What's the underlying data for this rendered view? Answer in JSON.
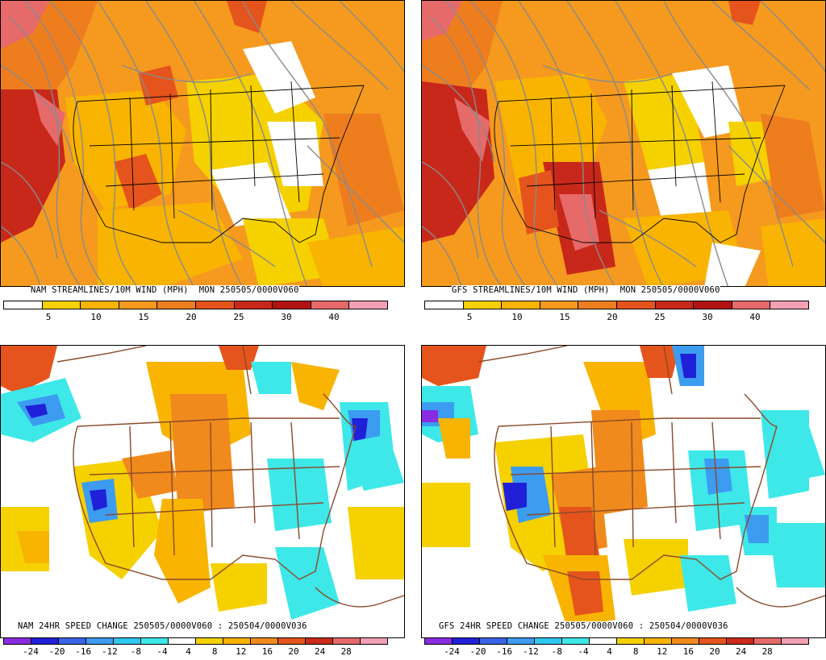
{
  "panels": [
    {
      "id": "nam-wind",
      "title": "NAM STREAMLINES/10M WIND (MPH)  MON 250505/0000V060",
      "kind": "wind",
      "ticks": [
        "5",
        "10",
        "15",
        "20",
        "25",
        "30",
        "40"
      ]
    },
    {
      "id": "gfs-wind",
      "title": "GFS STREAMLINES/10M WIND (MPH)  MON 250505/0000V060",
      "kind": "wind",
      "ticks": [
        "5",
        "10",
        "15",
        "20",
        "25",
        "30",
        "40"
      ]
    },
    {
      "id": "nam-change",
      "title": "NAM 24HR SPEED CHANGE 250505/0000V060 : 250504/0000V036",
      "kind": "change",
      "ticks": [
        "-24",
        "-20",
        "-16",
        "-12",
        "-8",
        "-4",
        "4",
        "8",
        "12",
        "16",
        "20",
        "24",
        "28"
      ]
    },
    {
      "id": "gfs-change",
      "title": "GFS 24HR SPEED CHANGE 250505/0000V060 : 250504/0000V036",
      "kind": "change",
      "ticks": [
        "-24",
        "-20",
        "-16",
        "-12",
        "-8",
        "-4",
        "4",
        "8",
        "12",
        "16",
        "20",
        "24",
        "28"
      ]
    }
  ],
  "scales": {
    "wind_colors": [
      "#ffffff",
      "#f5d100",
      "#f8b400",
      "#f59a1e",
      "#ee7d1e",
      "#e5541c",
      "#c8281a",
      "#b21212",
      "#e66a6a",
      "#f4a0b4"
    ],
    "change_colors": [
      "#8a2be2",
      "#2020d8",
      "#3a64e8",
      "#3c9cf0",
      "#2ec8f0",
      "#3ee8e8",
      "#ffffff",
      "#f5d100",
      "#f8b400",
      "#f08a1c",
      "#e5541c",
      "#cc2a1a",
      "#e66a6a",
      "#f4a0b4"
    ]
  },
  "colors": {
    "streamline": "#8a8a8a",
    "border": "#8b4a2a"
  }
}
